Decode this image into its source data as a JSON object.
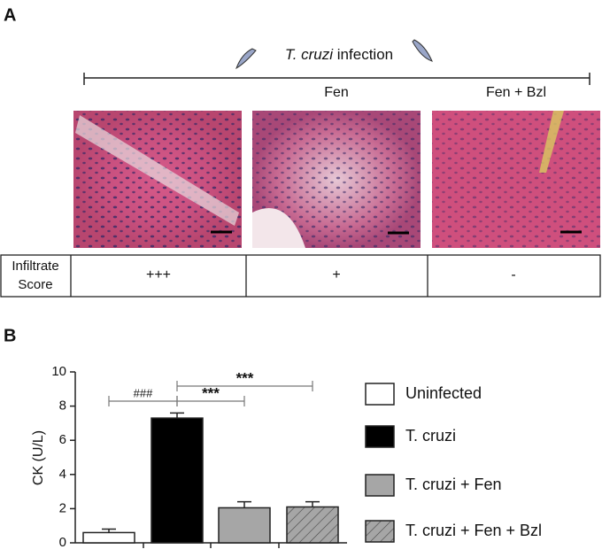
{
  "panel_a": {
    "label": "A",
    "infection_italic": "T. cruzi",
    "infection_rest": "infection",
    "columns": [
      "Fen",
      "Fen + Bzl"
    ],
    "table": {
      "header": [
        "Infiltrate",
        "Score"
      ],
      "scores": [
        "+++",
        "+",
        "-"
      ]
    }
  },
  "chart_data": {
    "type": "bar",
    "panel_label": "B",
    "ylabel": "CK (U/L)",
    "ylim": [
      0,
      10
    ],
    "yticks": [
      0,
      2,
      4,
      6,
      8,
      10
    ],
    "series": [
      {
        "name": "Uninfected",
        "color": "#ffffff",
        "values": [
          0.6
        ],
        "errors": [
          0.2
        ]
      },
      {
        "name": "T. cruzi",
        "color": "#000000",
        "values": [
          7.3
        ],
        "errors": [
          0.3
        ]
      },
      {
        "name": "T. cruzi + Fen",
        "color": "#a6a6a6",
        "values": [
          2.05
        ],
        "errors": [
          0.35
        ]
      },
      {
        "name": "T. cruzi + Fen + Bzl",
        "color": "#a6a6a6",
        "hatch": true,
        "values": [
          2.1
        ],
        "errors": [
          0.3
        ]
      }
    ],
    "annotations": [
      "###",
      "***",
      "***"
    ]
  }
}
